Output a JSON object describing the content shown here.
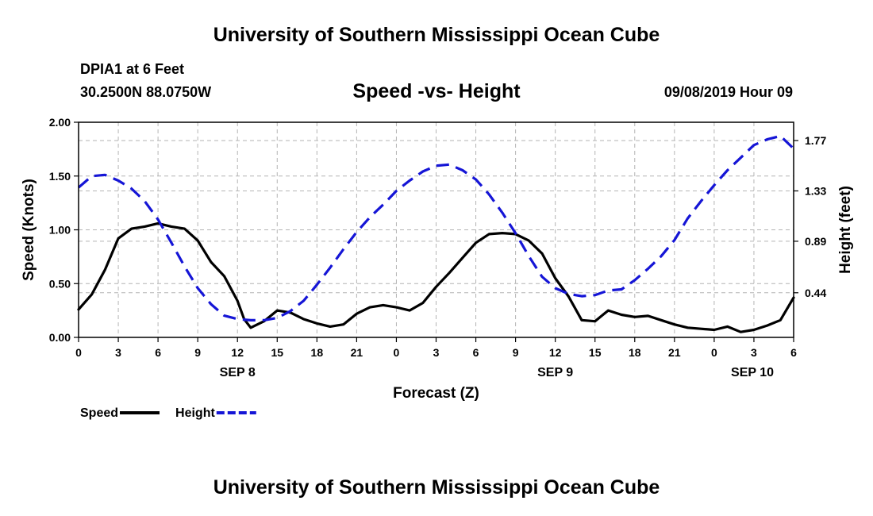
{
  "header": {
    "title": "University of Southern Mississippi Ocean Cube",
    "station": "DPIA1 at 6 Feet",
    "coordinates": "30.2500N 88.0750W",
    "timestamp": "09/08/2019 Hour 09"
  },
  "footer": {
    "title": "University of Southern Mississippi Ocean Cube"
  },
  "chart_data": {
    "type": "line",
    "title": "Speed -vs- Height",
    "xlabel": "Forecast (Z)",
    "ylabel": "Speed (Knots)",
    "y2label": "Height (feet)",
    "grid": true,
    "xlim": [
      0,
      54
    ],
    "ylim": [
      0,
      2
    ],
    "y2lim": [
      0.05,
      1.93
    ],
    "x_ticks": [
      0,
      3,
      6,
      9,
      12,
      15,
      18,
      21,
      24,
      27,
      30,
      33,
      36,
      39,
      42,
      45,
      48,
      51,
      54
    ],
    "x_tick_labels": [
      "0",
      "3",
      "6",
      "9",
      "12",
      "15",
      "18",
      "21",
      "0",
      "3",
      "6",
      "9",
      "12",
      "15",
      "18",
      "21",
      "0",
      "3",
      "6"
    ],
    "date_labels": [
      {
        "x": 12,
        "label": "SEP 8"
      },
      {
        "x": 36,
        "label": "SEP 9"
      },
      {
        "x": 52.5,
        "label": "SEP 10"
      }
    ],
    "y_ticks": [
      0,
      0.5,
      1,
      1.5,
      2
    ],
    "y_tick_labels": [
      "0.00",
      "0.50",
      "1.00",
      "1.50",
      "2.00"
    ],
    "y2_ticks": [
      0.44,
      0.89,
      1.33,
      1.77
    ],
    "y2_tick_labels": [
      "0.44",
      "0.89",
      "1.33",
      "1.77"
    ],
    "series": [
      {
        "name": "Speed",
        "axis": "left",
        "color": "#000000",
        "dash": "solid",
        "x": [
          0,
          1,
          2,
          3,
          4,
          5,
          6,
          7,
          8,
          9,
          10,
          11,
          12,
          12.5,
          13,
          14,
          15,
          16,
          17,
          18,
          19,
          20,
          21,
          22,
          23,
          24,
          25,
          26,
          27,
          28,
          29,
          30,
          31,
          32,
          33,
          34,
          35,
          36,
          37,
          38,
          39,
          40,
          41,
          42,
          43,
          44,
          45,
          46,
          47,
          48,
          49,
          50,
          51,
          52,
          53,
          54
        ],
        "values": [
          0.26,
          0.4,
          0.63,
          0.92,
          1.01,
          1.03,
          1.06,
          1.03,
          1.01,
          0.9,
          0.7,
          0.57,
          0.34,
          0.17,
          0.09,
          0.15,
          0.25,
          0.23,
          0.17,
          0.13,
          0.1,
          0.12,
          0.22,
          0.28,
          0.3,
          0.28,
          0.25,
          0.32,
          0.47,
          0.6,
          0.74,
          0.88,
          0.96,
          0.97,
          0.96,
          0.9,
          0.78,
          0.55,
          0.38,
          0.16,
          0.15,
          0.25,
          0.21,
          0.19,
          0.2,
          0.16,
          0.12,
          0.09,
          0.08,
          0.07,
          0.1,
          0.05,
          0.07,
          0.11,
          0.16,
          0.37
        ]
      },
      {
        "name": "Height",
        "axis": "right",
        "color": "#1515d6",
        "dash": "dashed",
        "x": [
          0,
          1,
          2,
          3,
          4,
          5,
          6,
          7,
          8,
          9,
          10,
          11,
          12,
          13,
          14,
          15,
          16,
          17,
          18,
          19,
          20,
          21,
          22,
          23,
          24,
          25,
          26,
          27,
          28,
          29,
          30,
          31,
          32,
          33,
          34,
          35,
          36,
          37,
          38,
          39,
          40,
          41,
          42,
          43,
          44,
          45,
          46,
          47,
          48,
          49,
          50,
          51,
          52,
          53,
          54
        ],
        "values": [
          1.36,
          1.46,
          1.47,
          1.42,
          1.35,
          1.24,
          1.08,
          0.88,
          0.67,
          0.48,
          0.34,
          0.24,
          0.21,
          0.2,
          0.2,
          0.22,
          0.28,
          0.37,
          0.51,
          0.66,
          0.82,
          0.97,
          1.1,
          1.21,
          1.33,
          1.42,
          1.5,
          1.55,
          1.56,
          1.51,
          1.43,
          1.3,
          1.14,
          0.96,
          0.76,
          0.58,
          0.48,
          0.43,
          0.41,
          0.42,
          0.46,
          0.47,
          0.55,
          0.65,
          0.76,
          0.9,
          1.09,
          1.24,
          1.38,
          1.51,
          1.62,
          1.73,
          1.78,
          1.81,
          1.7
        ]
      }
    ],
    "legend": [
      {
        "label": "Speed",
        "color": "#000000",
        "dash": "solid"
      },
      {
        "label": "Height",
        "color": "#1515d6",
        "dash": "dashed"
      }
    ]
  }
}
